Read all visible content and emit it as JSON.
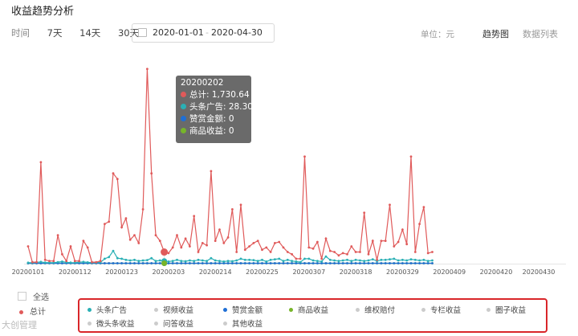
{
  "page": {
    "title": "收益趋势分析",
    "filters": {
      "label": "时间",
      "options": [
        "7天",
        "14天",
        "30天"
      ]
    },
    "date_range": {
      "start": "2020-01-01",
      "separator": "-",
      "end": "2020-04-30"
    },
    "unit": "单位：元",
    "views": [
      "趋势图",
      "数据列表"
    ],
    "select_all": "全选",
    "total_label": "总计",
    "watermark": "大创管理"
  },
  "tooltip": {
    "date": "20200202",
    "rows": [
      {
        "label": "总计: 1,730.64",
        "color": "#e05a5a"
      },
      {
        "label": "头条广告: 28.30",
        "color": "#2ab0b5"
      },
      {
        "label": "赞赏金额: 0",
        "color": "#1f6fd6"
      },
      {
        "label": "商品收益: 0",
        "color": "#77b52a"
      }
    ]
  },
  "legend": [
    {
      "label": "头条广告",
      "color": "#2ab0b5"
    },
    {
      "label": "视频收益",
      "color": "#cccccc"
    },
    {
      "label": "赞赏金额",
      "color": "#1f6fd6"
    },
    {
      "label": "商品收益",
      "color": "#77b52a"
    },
    {
      "label": "维权赔付",
      "color": "#cccccc"
    },
    {
      "label": "专栏收益",
      "color": "#cccccc"
    },
    {
      "label": "圈子收益",
      "color": "#cccccc"
    },
    {
      "label": "微头条收益",
      "color": "#cccccc"
    },
    {
      "label": "问答收益",
      "color": "#cccccc"
    },
    {
      "label": "其他收益",
      "color": "#cccccc"
    }
  ],
  "chart_data": {
    "type": "line",
    "x_start": "2020-01-01",
    "x_ticks": [
      "20200101",
      "20200112",
      "20200123",
      "20200203",
      "20200214",
      "20200225",
      "20200307",
      "20200318",
      "20200329",
      "20200409",
      "20200420",
      "20200430"
    ],
    "ylim": [
      0,
      1800
    ],
    "series": [
      {
        "name": "总计",
        "color": "#e05a5a",
        "values": [
          150,
          10,
          10,
          900,
          30,
          20,
          20,
          250,
          80,
          20,
          150,
          20,
          20,
          200,
          140,
          10,
          10,
          20,
          350,
          370,
          800,
          750,
          320,
          400,
          210,
          250,
          180,
          480,
          1730,
          800,
          250,
          200,
          100,
          90,
          140,
          250,
          140,
          220,
          150,
          420,
          100,
          180,
          160,
          820,
          200,
          300,
          180,
          230,
          480,
          100,
          520,
          120,
          150,
          180,
          200,
          120,
          140,
          100,
          180,
          190,
          140,
          100,
          80,
          40,
          40,
          950,
          140,
          130,
          190,
          40,
          220,
          110,
          100,
          70,
          90,
          80,
          150,
          100,
          100,
          450,
          80,
          200,
          30,
          200,
          200,
          520,
          150,
          190,
          300,
          170,
          950,
          100,
          350,
          500,
          90,
          100
        ]
      },
      {
        "name": "头条广告",
        "color": "#2ab0b5",
        "values": [
          5,
          5,
          8,
          12,
          6,
          6,
          5,
          10,
          15,
          8,
          6,
          5,
          10,
          12,
          8,
          6,
          6,
          8,
          40,
          55,
          110,
          45,
          40,
          30,
          25,
          30,
          20,
          25,
          28,
          45,
          20,
          25,
          20,
          15,
          20,
          30,
          20,
          18,
          25,
          20,
          30,
          25,
          20,
          45,
          25,
          20,
          15,
          20,
          18,
          25,
          40,
          30,
          30,
          28,
          20,
          30,
          15,
          30,
          35,
          40,
          20,
          30,
          20,
          15,
          10,
          40,
          40,
          25,
          20,
          15,
          60,
          30,
          25,
          20,
          25,
          30,
          20,
          30,
          25,
          20,
          25,
          35,
          20,
          30,
          30,
          35,
          40,
          25,
          30,
          25,
          35,
          30,
          25,
          30,
          20,
          25
        ]
      },
      {
        "name": "赞赏金额",
        "color": "#1f6fd6",
        "values": [
          0
        ]
      },
      {
        "name": "商品收益",
        "color": "#77b52a",
        "values": [
          0
        ]
      }
    ],
    "highlight": {
      "date": "20200202"
    }
  }
}
